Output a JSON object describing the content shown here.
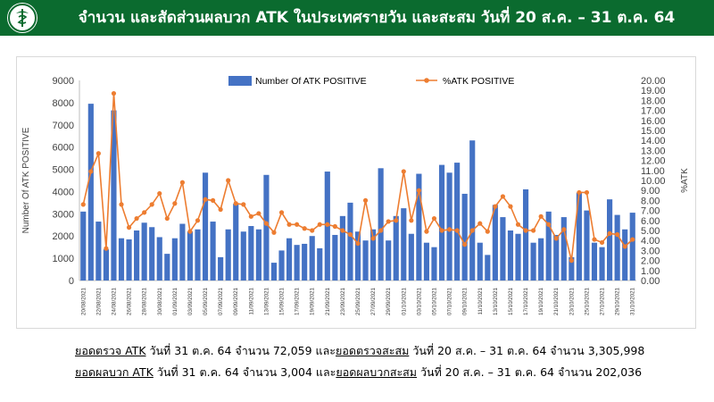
{
  "header": {
    "title": "จำนวน และสัดส่วนผลบวก ATK ในประเทศรายวัน และสะสม วันที่ 20 ส.ค. – 31 ต.ค. 64",
    "background": "#0b6b2f"
  },
  "chart_data": {
    "type": "bar",
    "ylabel": "Number Of ATK POSITIVE",
    "y2label": "%ATK",
    "ylim": [
      0,
      9000
    ],
    "y2lim": [
      0,
      20
    ],
    "yticks": [
      "0",
      "1000",
      "2000",
      "3000",
      "4000",
      "5000",
      "6000",
      "7000",
      "8000",
      "9000"
    ],
    "y2ticks": [
      "0.00",
      "1.00",
      "2.00",
      "3.00",
      "4.00",
      "5.00",
      "6.00",
      "7.00",
      "8.00",
      "9.00",
      "10.00",
      "11.00",
      "12.00",
      "13.00",
      "14.00",
      "15.00",
      "16.00",
      "17.00",
      "18.00",
      "19.00",
      "20.00"
    ],
    "legend_position": "top",
    "grid": false,
    "tick_labels": [
      "20/08/2021",
      "22/08/2021",
      "24/08/2021",
      "26/08/2021",
      "28/08/2021",
      "30/08/2021",
      "01/09/2021",
      "03/09/2021",
      "05/09/2021",
      "07/09/2021",
      "09/09/2021",
      "11/09/2021",
      "13/09/2021",
      "15/09/2021",
      "17/09/2021",
      "19/09/2021",
      "21/09/2021",
      "23/09/2021",
      "25/09/2021",
      "27/09/2021",
      "29/09/2021",
      "01/10/2021",
      "03/10/2021",
      "05/10/2021",
      "07/10/2021",
      "09/10/2021",
      "11/10/2021",
      "13/10/2021",
      "15/10/2021",
      "17/10/2021",
      "19/10/2021",
      "21/10/2021",
      "23/10/2021",
      "25/10/2021",
      "27/10/2021",
      "29/10/2021",
      "31/10/2021"
    ],
    "series": [
      {
        "name": "Number Of ATK POSITIVE",
        "kind": "bar",
        "axis": "left",
        "color": "#4472c4",
        "values": [
          3100,
          7950,
          2650,
          1400,
          7650,
          1900,
          1850,
          2250,
          2600,
          2400,
          1950,
          1200,
          1900,
          2550,
          2200,
          2300,
          4850,
          2650,
          1050,
          2300,
          3450,
          2200,
          2450,
          2300,
          4750,
          800,
          1350,
          1900,
          1600,
          1650,
          2000,
          1450,
          4900,
          2050,
          2900,
          3500,
          2200,
          1800,
          2300,
          5050,
          1800,
          2900,
          3250,
          2100,
          4800,
          1700,
          1500,
          5200,
          4850,
          5300,
          3900,
          6300,
          1700,
          1150,
          3400,
          2850,
          2250,
          2100,
          4100,
          1700,
          1900,
          3100,
          2050,
          2850,
          1050,
          3950,
          3150,
          1700,
          1500,
          3650,
          2950,
          2300,
          3050
        ]
      },
      {
        "name": "%ATK POSITIVE",
        "kind": "line",
        "axis": "right",
        "color": "#ed7d31",
        "values": [
          7.6,
          10.9,
          12.7,
          3.2,
          18.7,
          7.6,
          5.3,
          6.2,
          6.8,
          7.6,
          8.7,
          6.2,
          7.7,
          9.8,
          4.9,
          6.0,
          8.1,
          8.0,
          7.1,
          10.0,
          7.7,
          7.6,
          6.4,
          6.7,
          5.7,
          4.8,
          6.8,
          5.6,
          5.6,
          5.2,
          5.0,
          5.6,
          5.6,
          5.4,
          5.0,
          4.6,
          3.7,
          8.0,
          4.2,
          5.0,
          5.9,
          6.0,
          10.9,
          6.0,
          9.0,
          4.9,
          6.2,
          5.0,
          5.1,
          5.0,
          3.6,
          5.0,
          5.7,
          4.9,
          7.4,
          8.4,
          7.4,
          5.6,
          5.0,
          5.0,
          6.4,
          5.6,
          4.2,
          5.1,
          2.0,
          8.8,
          8.8,
          4.1,
          3.8,
          4.7,
          4.6,
          3.4,
          4.1
        ]
      }
    ]
  },
  "summary": {
    "line1": {
      "label": "ยอดตรวจ ATK",
      "text1": " วันที่ 31 ต.ค. 64 จำนวน 72,059 และ",
      "label2": "ยอดตรวจสะสม",
      "text2": " วันที่ 20 ส.ค. – 31 ต.ค. 64 จำนวน 3,305,998"
    },
    "line2": {
      "label": "ยอดผลบวก ATK",
      "text1": " วันที่ 31 ต.ค. 64 จำนวน 3,004 และ",
      "label2": "ยอดผลบวกสะสม",
      "text2": " วันที่ 20 ส.ค. – 31 ต.ค. 64 จำนวน 202,036"
    }
  }
}
